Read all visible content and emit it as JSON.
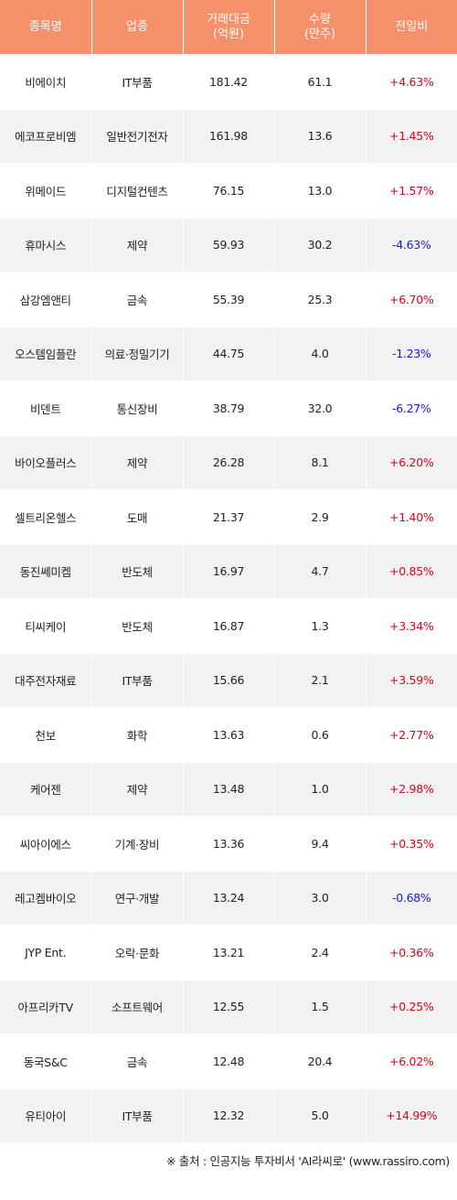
{
  "colors": {
    "header_bg": "#f4916a",
    "positive": "#e0001a",
    "negative": "#1a1acc"
  },
  "headers": {
    "name": "종목명",
    "sector": "업종",
    "amount_line1": "거래대금",
    "amount_line2": "(억원)",
    "volume_line1": "수량",
    "volume_line2": "(만주)",
    "change": "전일비"
  },
  "rows": [
    {
      "name": "비에이치",
      "sector": "IT부품",
      "amount": "181.42",
      "volume": "61.1",
      "change": "+4.63%",
      "dir": "up"
    },
    {
      "name": "에코프로비엠",
      "sector": "일반전기전자",
      "amount": "161.98",
      "volume": "13.6",
      "change": "+1.45%",
      "dir": "up"
    },
    {
      "name": "위메이드",
      "sector": "디지털컨텐츠",
      "amount": "76.15",
      "volume": "13.0",
      "change": "+1.57%",
      "dir": "up"
    },
    {
      "name": "휴마시스",
      "sector": "제약",
      "amount": "59.93",
      "volume": "30.2",
      "change": "-4.63%",
      "dir": "down"
    },
    {
      "name": "삼강엠앤티",
      "sector": "금속",
      "amount": "55.39",
      "volume": "25.3",
      "change": "+6.70%",
      "dir": "up"
    },
    {
      "name": "오스템임플란",
      "sector": "의료·정밀기기",
      "amount": "44.75",
      "volume": "4.0",
      "change": "-1.23%",
      "dir": "down"
    },
    {
      "name": "비덴트",
      "sector": "통신장비",
      "amount": "38.79",
      "volume": "32.0",
      "change": "-6.27%",
      "dir": "down"
    },
    {
      "name": "바이오플러스",
      "sector": "제약",
      "amount": "26.28",
      "volume": "8.1",
      "change": "+6.20%",
      "dir": "up"
    },
    {
      "name": "셀트리온헬스",
      "sector": "도매",
      "amount": "21.37",
      "volume": "2.9",
      "change": "+1.40%",
      "dir": "up"
    },
    {
      "name": "동진쎄미켐",
      "sector": "반도체",
      "amount": "16.97",
      "volume": "4.7",
      "change": "+0.85%",
      "dir": "up"
    },
    {
      "name": "티씨케이",
      "sector": "반도체",
      "amount": "16.87",
      "volume": "1.3",
      "change": "+3.34%",
      "dir": "up"
    },
    {
      "name": "대주전자재료",
      "sector": "IT부품",
      "amount": "15.66",
      "volume": "2.1",
      "change": "+3.59%",
      "dir": "up"
    },
    {
      "name": "천보",
      "sector": "화학",
      "amount": "13.63",
      "volume": "0.6",
      "change": "+2.77%",
      "dir": "up"
    },
    {
      "name": "케어젠",
      "sector": "제약",
      "amount": "13.48",
      "volume": "1.0",
      "change": "+2.98%",
      "dir": "up"
    },
    {
      "name": "씨아이에스",
      "sector": "기계·장비",
      "amount": "13.36",
      "volume": "9.4",
      "change": "+0.35%",
      "dir": "up"
    },
    {
      "name": "레고켐바이오",
      "sector": "연구·개발",
      "amount": "13.24",
      "volume": "3.0",
      "change": "-0.68%",
      "dir": "down"
    },
    {
      "name": "JYP Ent.",
      "sector": "오락·문화",
      "amount": "13.21",
      "volume": "2.4",
      "change": "+0.36%",
      "dir": "up"
    },
    {
      "name": "아프리카TV",
      "sector": "소프트웨어",
      "amount": "12.55",
      "volume": "1.5",
      "change": "+0.25%",
      "dir": "up"
    },
    {
      "name": "동국S&C",
      "sector": "금속",
      "amount": "12.48",
      "volume": "20.4",
      "change": "+6.02%",
      "dir": "up"
    },
    {
      "name": "유티아이",
      "sector": "IT부품",
      "amount": "12.32",
      "volume": "5.0",
      "change": "+14.99%",
      "dir": "up"
    }
  ],
  "footer": "※ 출처 : 인공지능 투자비서 'AI라씨로' (www.rassiro.com)"
}
